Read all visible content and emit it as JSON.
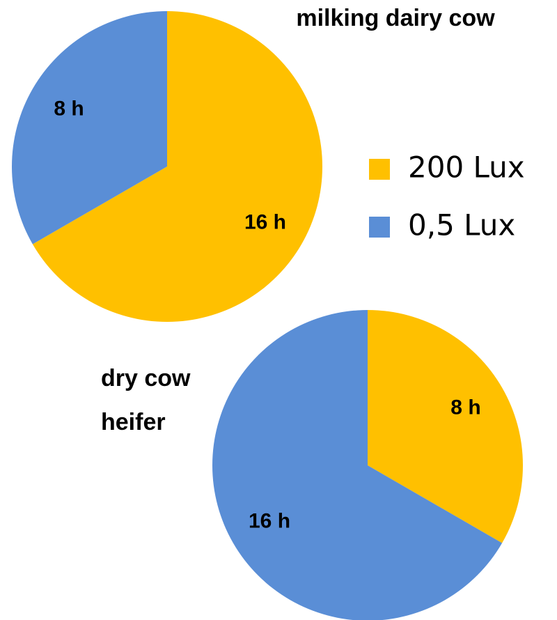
{
  "chart_data": [
    {
      "type": "pie",
      "title": "milking dairy cow",
      "categories": [
        "200 Lux",
        "0,5 Lux"
      ],
      "values": [
        16,
        8
      ],
      "value_labels": [
        "16 h",
        "8 h"
      ],
      "colors": [
        "#FFC000",
        "#5A8ED6"
      ]
    },
    {
      "type": "pie",
      "title": [
        "dry cow",
        "heifer"
      ],
      "categories": [
        "200 Lux",
        "0,5 Lux"
      ],
      "values": [
        8,
        16
      ],
      "value_labels": [
        "8 h",
        "16 h"
      ],
      "colors": [
        "#FFC000",
        "#5A8ED6"
      ]
    }
  ]
}
